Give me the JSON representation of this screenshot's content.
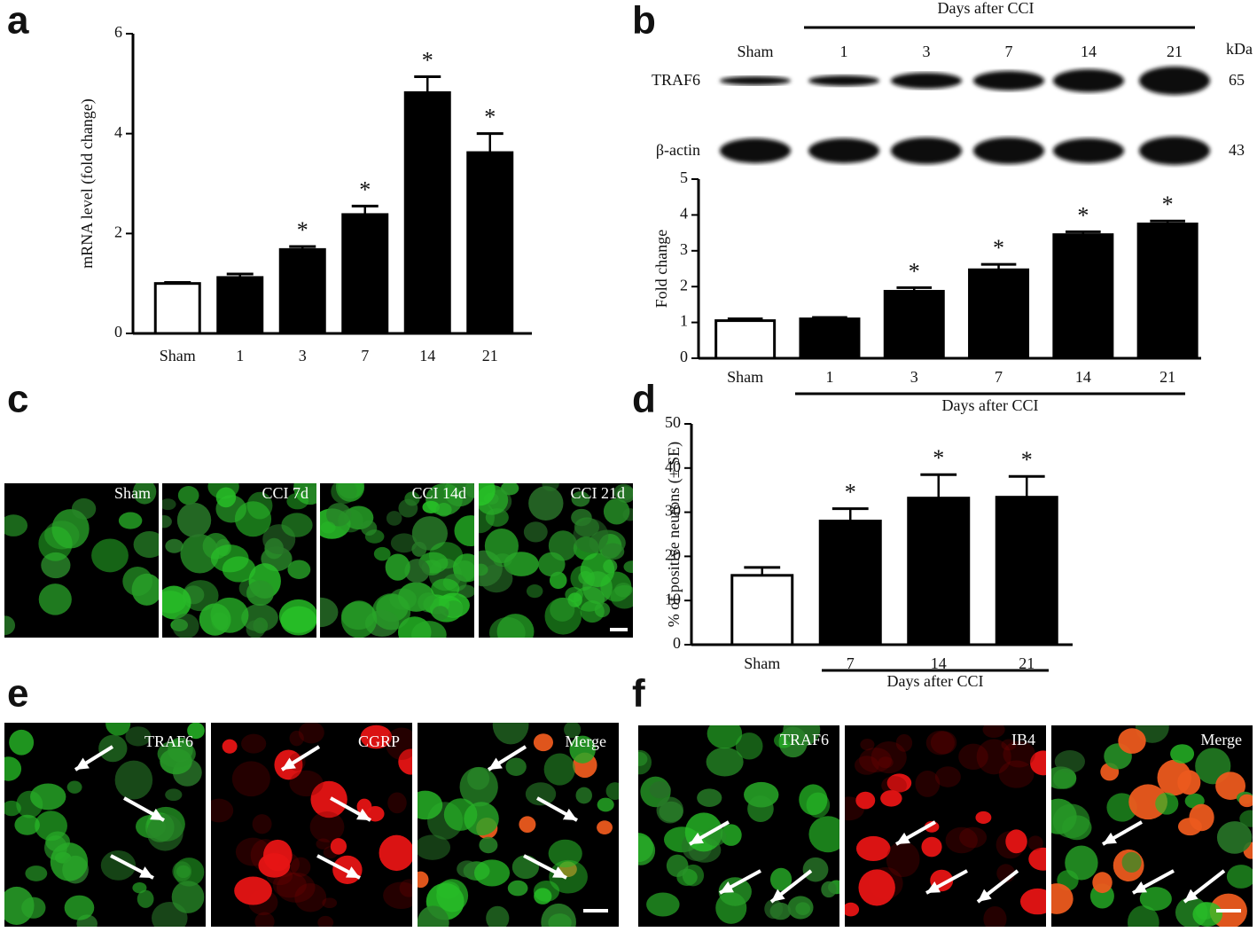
{
  "chart_data": [
    {
      "type": "bar",
      "y_label": "mRNA level (fold change)",
      "categories": [
        "Sham",
        "1",
        "3",
        "7",
        "14",
        "21"
      ],
      "values": [
        1.0,
        1.12,
        1.68,
        2.38,
        4.82,
        3.62
      ],
      "errors": [
        0.02,
        0.07,
        0.06,
        0.17,
        0.32,
        0.38
      ],
      "colors": [
        "#ffffff",
        "#000000",
        "#000000",
        "#000000",
        "#000000",
        "#000000"
      ],
      "sig_marks": [
        null,
        null,
        "*",
        "*",
        "*",
        "*"
      ],
      "ylim": [
        0,
        6
      ],
      "yticks": [
        0,
        2,
        4,
        6
      ]
    },
    {
      "type": "bar",
      "y_label": "Fold change",
      "x_label": "Days after CCI",
      "categories": [
        "Sham",
        "1",
        "3",
        "7",
        "14",
        "21"
      ],
      "values": [
        1.05,
        1.1,
        1.87,
        2.47,
        3.45,
        3.75
      ],
      "errors": [
        0.05,
        0.04,
        0.1,
        0.15,
        0.08,
        0.08
      ],
      "colors": [
        "#ffffff",
        "#000000",
        "#000000",
        "#000000",
        "#000000",
        "#000000"
      ],
      "sig_marks": [
        null,
        null,
        "*",
        "*",
        "*",
        "*"
      ],
      "ylim": [
        0,
        5
      ],
      "yticks": [
        0,
        1,
        2,
        3,
        4,
        5
      ]
    },
    {
      "type": "bar",
      "y_label": "% of positive neurons (± SE)",
      "x_label": "Days after CCI",
      "categories": [
        "Sham",
        "7",
        "14",
        "21"
      ],
      "values": [
        15.7,
        28,
        33.2,
        33.4
      ],
      "errors": [
        1.8,
        2.8,
        5.3,
        4.7
      ],
      "colors": [
        "#ffffff",
        "#000000",
        "#000000",
        "#000000"
      ],
      "sig_marks": [
        null,
        "*",
        "*",
        "*"
      ],
      "ylim": [
        0,
        50
      ],
      "yticks": [
        0,
        10,
        20,
        30,
        40,
        50
      ]
    }
  ],
  "panel_letters": [
    "a",
    "b",
    "c",
    "d",
    "e",
    "f"
  ],
  "blot": {
    "header": "Days after CCI",
    "lanes": [
      "Sham",
      "1",
      "3",
      "7",
      "14",
      "21"
    ],
    "unit": "kDa",
    "rows": [
      {
        "label": "TRAF6",
        "kda": "65"
      },
      {
        "label": "β-actin",
        "kda": "43"
      }
    ]
  },
  "panel_c": {
    "labels": [
      "Sham",
      "CCI 7d",
      "CCI 14d",
      "CCI 21d"
    ]
  },
  "panel_e": {
    "labels": [
      "TRAF6",
      "CGRP",
      "Merge"
    ]
  },
  "panel_f": {
    "labels": [
      "TRAF6",
      "IB4",
      "Merge"
    ]
  }
}
